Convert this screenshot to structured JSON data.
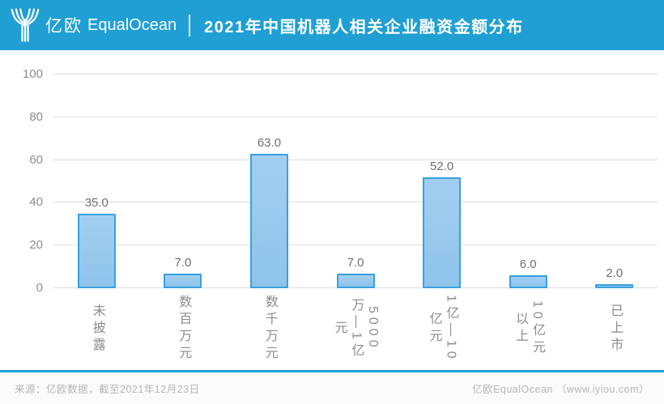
{
  "header": {
    "logo_text_cn": "亿欧",
    "logo_text_en": "EqualOcean",
    "title": "2021年中国机器人相关企业融资金额分布"
  },
  "chart_data": {
    "type": "bar",
    "title": "2021年中国机器人相关企业融资金额分布",
    "categories": [
      "未披露",
      "数百万元",
      "数千万元",
      "5000万—1亿元",
      "1亿—10亿元",
      "10亿元以上",
      "已上市"
    ],
    "categories_display": [
      "未披露",
      "数百万元",
      "数千万元",
      "5000\n万—1亿\n元",
      "1亿—10\n亿元",
      "10亿元\n以上",
      "已上市"
    ],
    "values": [
      35.0,
      7.0,
      63.0,
      7.0,
      52.0,
      6.0,
      2.0
    ],
    "value_labels": [
      "35.0",
      "7.0",
      "63.0",
      "7.0",
      "52.0",
      "6.0",
      "2.0"
    ],
    "xlabel": "",
    "ylabel": "",
    "y_ticks": [
      0,
      20,
      40,
      60,
      80,
      100
    ],
    "ylim": [
      0,
      100
    ],
    "grid": true,
    "legend": false,
    "bar_fill_color": "#94C6EB",
    "bar_border_color": "#39A0E0"
  },
  "footer": {
    "source_note": "来源：亿欧数据，截至2021年12月23日",
    "brand": "亿欧EqualOcean （www.iyiou.com）"
  },
  "colors": {
    "header_bg": "#1F9FD4",
    "separator_line": "#1F9FD4",
    "gridline": "#DCDCDC",
    "axis_label_text": "#8C8C8C",
    "data_label_text": "#6E6E6E",
    "footer_text": "#B5B5B5"
  }
}
